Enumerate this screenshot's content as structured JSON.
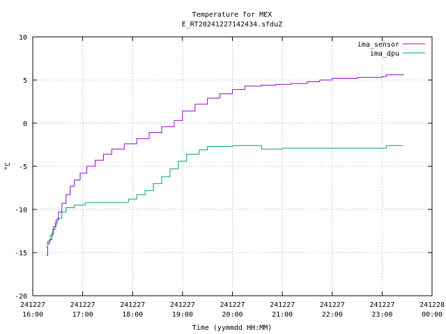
{
  "chart_data": {
    "type": "line",
    "title": "Temperature for MEX",
    "subtitle": "E_RT20241227142434.sfduZ",
    "xlabel": "Time (yymmdd HH:MM)",
    "ylabel": "°C",
    "xlim": [
      "241227 16:00",
      "241228 00:00"
    ],
    "ylim": [
      -20,
      10
    ],
    "grid": true,
    "legend_position": "top-right",
    "x_ticks": [
      {
        "t": 0,
        "line1": "241227",
        "line2": "16:00"
      },
      {
        "t": 60,
        "line1": "241227",
        "line2": "17:00"
      },
      {
        "t": 120,
        "line1": "241227",
        "line2": "18:00"
      },
      {
        "t": 180,
        "line1": "241227",
        "line2": "19:00"
      },
      {
        "t": 240,
        "line1": "241227",
        "line2": "20:00"
      },
      {
        "t": 300,
        "line1": "241227",
        "line2": "21:00"
      },
      {
        "t": 360,
        "line1": "241227",
        "line2": "22:00"
      },
      {
        "t": 420,
        "line1": "241227",
        "line2": "23:00"
      },
      {
        "t": 480,
        "line1": "241228",
        "line2": "00:00"
      }
    ],
    "y_ticks": [
      10,
      5,
      0,
      -5,
      -10,
      -15,
      -20
    ],
    "series": [
      {
        "name": "ima_sensor",
        "color": "#9400d3",
        "points": [
          [
            "241227 16:16",
            -15.3
          ],
          [
            "241227 16:18",
            -14.0
          ],
          [
            "241227 16:20",
            -13.5
          ],
          [
            "241227 16:23",
            -12.8
          ],
          [
            "241227 16:25",
            -12.0
          ],
          [
            "241227 16:28",
            -11.2
          ],
          [
            "241227 16:31",
            -10.3
          ],
          [
            "241227 16:35",
            -9.3
          ],
          [
            "241227 16:40",
            -8.3
          ],
          [
            "241227 16:45",
            -7.3
          ],
          [
            "241227 16:50",
            -6.6
          ],
          [
            "241227 16:57",
            -5.8
          ],
          [
            "241227 17:05",
            -5.0
          ],
          [
            "241227 17:15",
            -4.3
          ],
          [
            "241227 17:25",
            -3.6
          ],
          [
            "241227 17:35",
            -3.0
          ],
          [
            "241227 17:50",
            -2.4
          ],
          [
            "241227 18:05",
            -1.8
          ],
          [
            "241227 18:20",
            -1.1
          ],
          [
            "241227 18:35",
            -0.4
          ],
          [
            "241227 18:50",
            0.3
          ],
          [
            "241227 19:00",
            1.4
          ],
          [
            "241227 19:15",
            2.2
          ],
          [
            "241227 19:30",
            2.9
          ],
          [
            "241227 19:45",
            3.4
          ],
          [
            "241227 20:00",
            3.9
          ],
          [
            "241227 20:15",
            4.3
          ],
          [
            "241227 20:35",
            4.4
          ],
          [
            "241227 20:52",
            4.5
          ],
          [
            "241227 21:10",
            4.6
          ],
          [
            "241227 21:30",
            4.8
          ],
          [
            "241227 21:45",
            5.0
          ],
          [
            "241227 22:00",
            5.2
          ],
          [
            "241227 22:30",
            5.3
          ],
          [
            "241227 23:00",
            5.4
          ],
          [
            "241227 23:05",
            5.6
          ],
          [
            "241227 23:25",
            5.7
          ]
        ]
      },
      {
        "name": "ima_dpu",
        "color": "#009e73",
        "points": [
          [
            "241227 16:16",
            -14.4
          ],
          [
            "241227 16:18",
            -13.7
          ],
          [
            "241227 16:21",
            -13.0
          ],
          [
            "241227 16:24",
            -12.3
          ],
          [
            "241227 16:27",
            -11.6
          ],
          [
            "241227 16:30",
            -11.0
          ],
          [
            "241227 16:35",
            -10.3
          ],
          [
            "241227 16:40",
            -9.8
          ],
          [
            "241227 16:50",
            -9.5
          ],
          [
            "241227 17:03",
            -9.2
          ],
          [
            "241227 17:30",
            -9.2
          ],
          [
            "241227 17:55",
            -8.8
          ],
          [
            "241227 18:05",
            -8.3
          ],
          [
            "241227 18:15",
            -7.8
          ],
          [
            "241227 18:25",
            -7.0
          ],
          [
            "241227 18:35",
            -6.2
          ],
          [
            "241227 18:45",
            -5.3
          ],
          [
            "241227 18:55",
            -4.4
          ],
          [
            "241227 19:05",
            -3.6
          ],
          [
            "241227 19:20",
            -3.1
          ],
          [
            "241227 19:30",
            -2.7
          ],
          [
            "241227 20:00",
            -2.6
          ],
          [
            "241227 20:30",
            -2.6
          ],
          [
            "241227 20:35",
            -3.0
          ],
          [
            "241227 21:00",
            -2.9
          ],
          [
            "241227 22:00",
            -2.9
          ],
          [
            "241227 23:00",
            -2.9
          ],
          [
            "241227 23:05",
            -2.6
          ],
          [
            "241227 23:25",
            -2.6
          ]
        ]
      }
    ]
  }
}
